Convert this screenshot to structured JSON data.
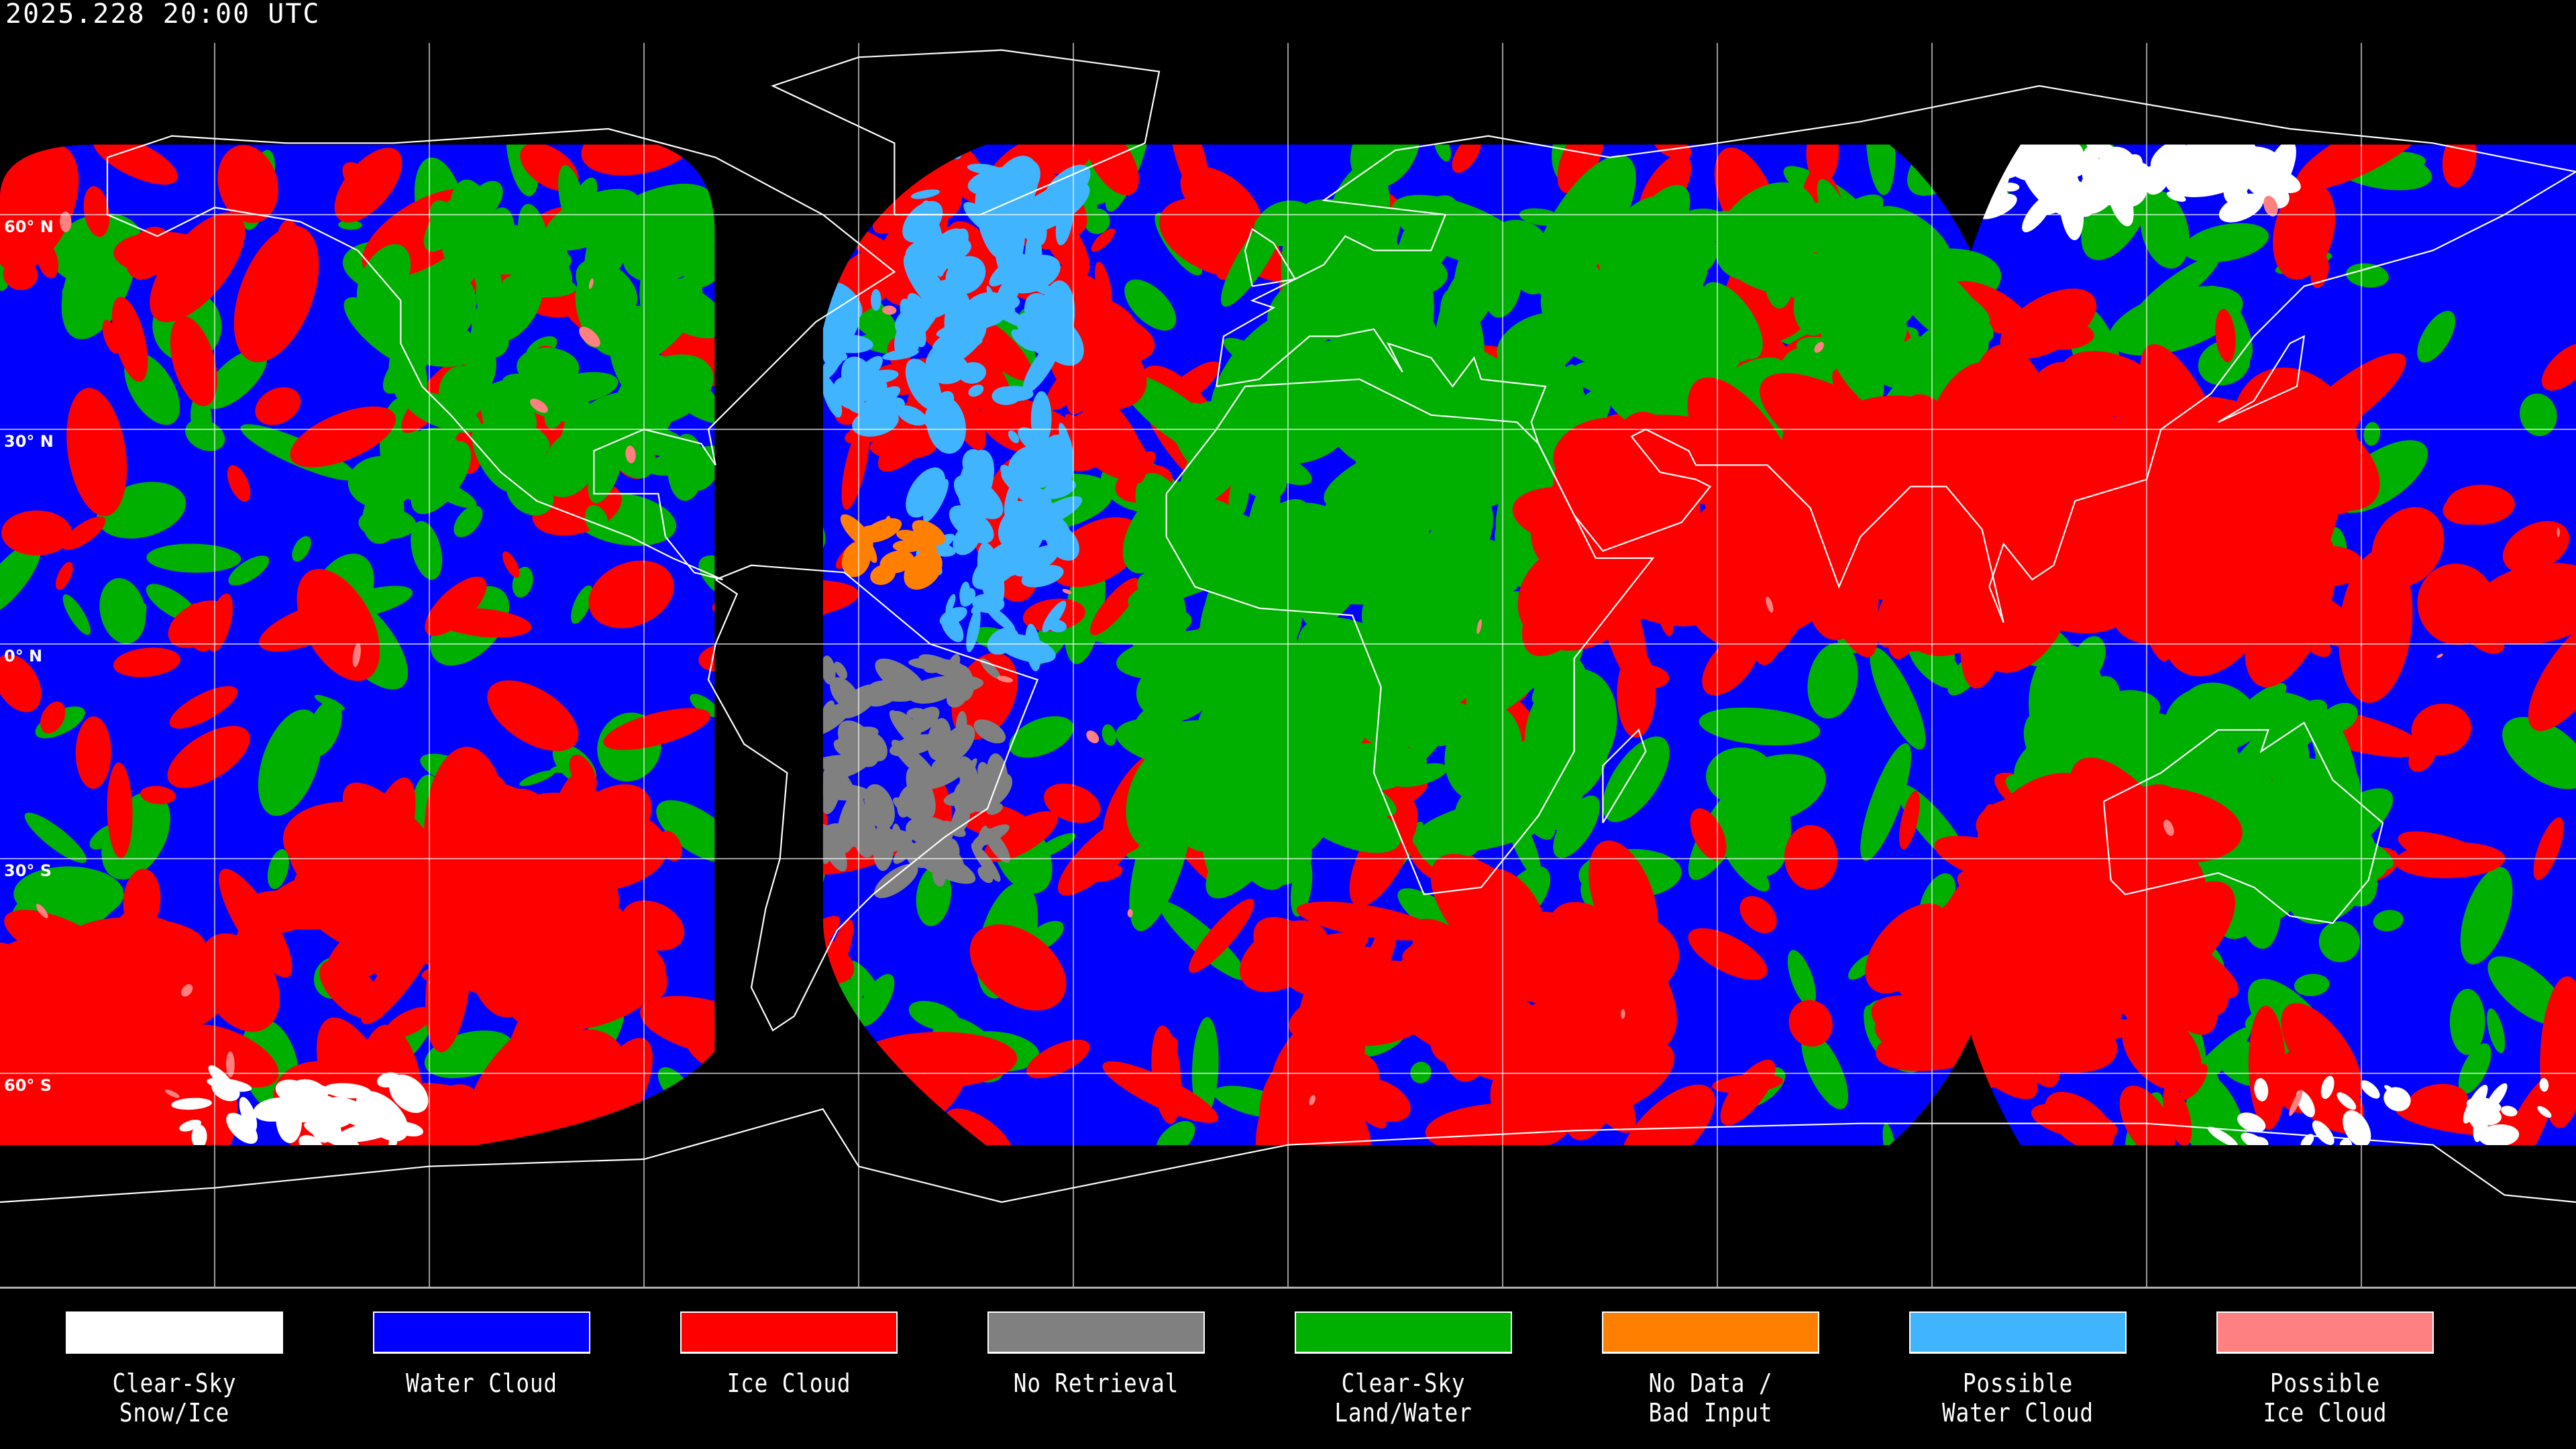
{
  "title": "2025.228 20:00 UTC",
  "latitude_labels": [
    "60° N",
    "30° N",
    "0° N",
    "30° S",
    "60° S"
  ],
  "legend": [
    {
      "label": "Clear-Sky\nSnow/Ice",
      "color": "#ffffff"
    },
    {
      "label": "Water Cloud",
      "color": "#0000ff"
    },
    {
      "label": "Ice Cloud",
      "color": "#ff0000"
    },
    {
      "label": "No Retrieval",
      "color": "#808080"
    },
    {
      "label": "Clear-Sky\nLand/Water",
      "color": "#00b000"
    },
    {
      "label": "No Data /\nBad Input",
      "color": "#ff8000"
    },
    {
      "label": "Possible\nWater Cloud",
      "color": "#40b4ff"
    },
    {
      "label": "Possible\nIce Cloud",
      "color": "#ff8080"
    }
  ],
  "map": {
    "projection": "equirectangular",
    "gridline_spacing_degrees": 30,
    "gridline_color": "#ffffff",
    "coastline_color": "#ffffff",
    "background_color": "#000000"
  }
}
